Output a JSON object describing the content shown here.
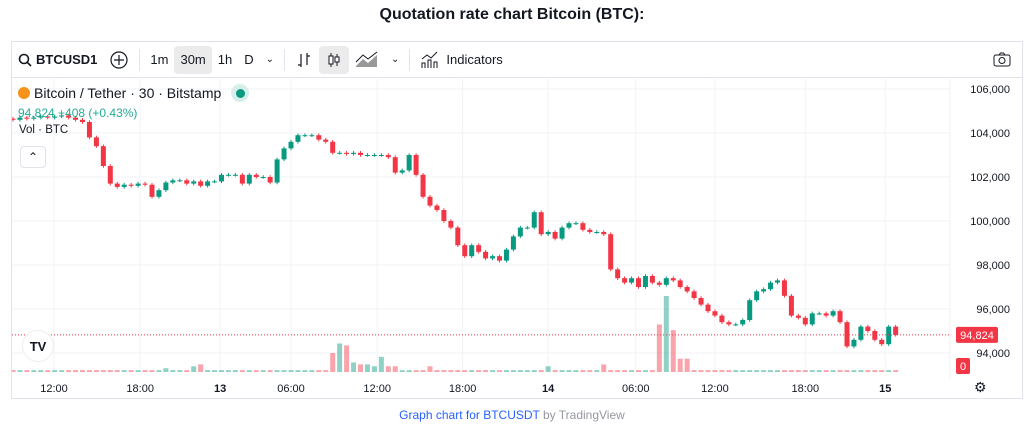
{
  "page_title": "Quotation rate chart Bitcoin (BTC):",
  "toolbar": {
    "symbol": "BTCUSD1",
    "intervals": [
      "1m",
      "30m",
      "1h",
      "D"
    ],
    "active_interval": "30m",
    "indicators_label": "Indicators",
    "icons": [
      "search-icon",
      "plus-circle-icon",
      "chevron-down-icon",
      "bar-chart-icon",
      "candles-icon",
      "area-chart-icon",
      "chevron-down-icon",
      "indicators-icon",
      "camera-icon"
    ]
  },
  "legend": {
    "name": "Bitcoin / Tether · 30 · Bitstamp",
    "change": "94,824 +408 (+0.43%)",
    "volume_label": "Vol · BTC"
  },
  "footer": {
    "link": "Graph chart for BTCUSDT",
    "suffix": " by TradingView"
  },
  "colors": {
    "up": "#089981",
    "down": "#f23645",
    "last_price": "#f23645"
  },
  "chart_data": {
    "type": "candlestick",
    "interval": "30",
    "ylim": [
      93500,
      106500
    ],
    "y_ticks": [
      106000,
      104000,
      102000,
      100000,
      98000,
      96000,
      94000
    ],
    "last_price": 94824,
    "last_price_label": "94,824",
    "volume_label": "0",
    "x_ticks": [
      {
        "label": "12:00",
        "index": 5.9
      },
      {
        "label": "18:00",
        "index": 18.3
      },
      {
        "label": "13",
        "index": 29.8,
        "bold": true
      },
      {
        "label": "06:00",
        "index": 40
      },
      {
        "label": "12:00",
        "index": 52.4
      },
      {
        "label": "18:00",
        "index": 64.7
      },
      {
        "label": "14",
        "index": 77,
        "bold": true
      },
      {
        "label": "06:00",
        "index": 89.6
      },
      {
        "label": "12:00",
        "index": 101
      },
      {
        "label": "18:00",
        "index": 114
      },
      {
        "label": "15",
        "index": 125.5,
        "bold": true
      }
    ],
    "closes": [
      104600,
      104700,
      104650,
      104700,
      104750,
      104700,
      104750,
      104800,
      104700,
      104600,
      104500,
      103800,
      103400,
      102500,
      101700,
      101550,
      101650,
      101600,
      101700,
      101650,
      101100,
      101400,
      101750,
      101850,
      101850,
      101700,
      101800,
      101600,
      101800,
      101800,
      102100,
      102100,
      102100,
      101700,
      102100,
      102000,
      102000,
      101750,
      102800,
      103300,
      103600,
      103900,
      103900,
      103900,
      103700,
      103600,
      103100,
      103100,
      103050,
      103100,
      103000,
      103000,
      103000,
      103000,
      102900,
      102200,
      102300,
      103000,
      102100,
      101100,
      100700,
      100500,
      100000,
      99700,
      98900,
      98400,
      98900,
      98600,
      98300,
      98400,
      98200,
      98700,
      99300,
      99700,
      99700,
      100400,
      99400,
      99500,
      99200,
      99700,
      99900,
      99900,
      99600,
      99500,
      99500,
      99400,
      97800,
      97400,
      97200,
      97400,
      97000,
      97500,
      97200,
      97100,
      97400,
      97300,
      97000,
      96800,
      96500,
      96200,
      95900,
      95700,
      95400,
      95300,
      95300,
      95500,
      96400,
      96800,
      96900,
      97200,
      97300,
      96600,
      95700,
      95600,
      95300,
      95800,
      95800,
      95700,
      95900,
      95400,
      94300,
      94600,
      95200,
      95000,
      94600,
      94400,
      95200,
      94824
    ],
    "volumes": [
      1,
      1,
      1,
      1,
      1,
      1,
      1,
      1,
      1,
      1,
      1,
      1,
      1,
      1,
      1,
      1,
      1,
      1,
      1,
      1,
      1,
      1,
      2,
      1,
      1,
      1,
      3,
      4,
      1,
      1,
      1,
      1,
      1,
      1,
      1,
      1,
      1,
      1,
      1,
      1,
      1,
      1,
      1,
      1,
      1,
      1,
      1,
      3,
      1,
      1,
      1,
      1,
      1,
      1,
      1,
      1,
      1,
      1,
      1,
      1,
      1,
      1,
      1,
      1,
      1,
      1,
      1,
      1,
      1,
      1,
      1,
      1,
      1,
      1,
      1,
      1,
      1,
      1,
      1,
      1,
      1,
      1,
      1,
      1,
      1,
      1,
      1,
      1,
      1,
      1,
      1,
      1,
      1,
      1,
      1,
      1,
      1,
      1,
      1,
      1,
      1,
      1,
      1,
      1,
      1,
      1,
      1,
      1,
      1,
      1,
      1,
      1,
      1,
      1,
      1,
      1,
      1,
      1,
      1,
      1,
      1,
      1,
      1,
      1,
      1,
      1,
      1,
      1
    ],
    "volume_spikes": [
      {
        "index": 46,
        "value": 10
      },
      {
        "index": 47,
        "value": 15
      },
      {
        "index": 48,
        "value": 14
      },
      {
        "index": 49,
        "value": 5
      },
      {
        "index": 50,
        "value": 4
      },
      {
        "index": 51,
        "value": 4
      },
      {
        "index": 52,
        "value": 3
      },
      {
        "index": 53,
        "value": 8
      },
      {
        "index": 54,
        "value": 3
      },
      {
        "index": 55,
        "value": 3
      },
      {
        "index": 93,
        "value": 25
      },
      {
        "index": 94,
        "value": 40
      },
      {
        "index": 95,
        "value": 22
      },
      {
        "index": 96,
        "value": 7
      },
      {
        "index": 97,
        "value": 7
      },
      {
        "index": 85,
        "value": 4
      },
      {
        "index": 77,
        "value": 3
      },
      {
        "index": 60,
        "value": 3
      }
    ]
  }
}
